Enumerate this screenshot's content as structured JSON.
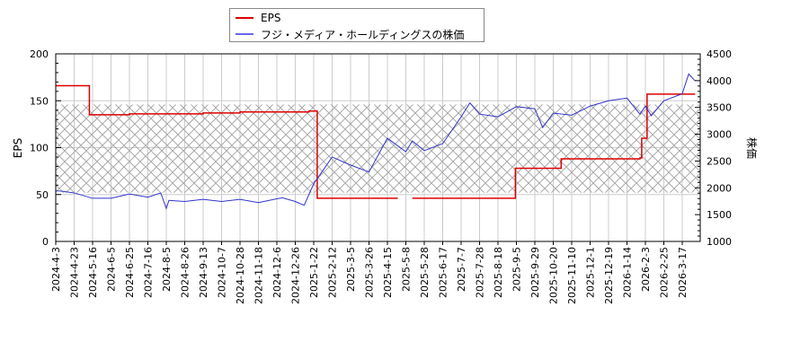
{
  "legend": {
    "items": [
      {
        "label": "EPS",
        "color": "#dd0000"
      },
      {
        "label": "フジ・メディア・ホールディングスの株価",
        "color": "#3333cc"
      }
    ]
  },
  "axes": {
    "left": {
      "title": "EPS",
      "ticks": [
        "0",
        "50",
        "100",
        "150",
        "200"
      ]
    },
    "right": {
      "title": "株価",
      "ticks": [
        "1000",
        "1500",
        "2000",
        "2500",
        "3000",
        "3500",
        "4000",
        "4500"
      ]
    },
    "x_ticks": [
      "2024-4-3",
      "2024-4-23",
      "2024-5-16",
      "2024-6-5",
      "2024-6-25",
      "2024-7-16",
      "2024-8-5",
      "2024-8-26",
      "2024-9-13",
      "2024-10-7",
      "2024-10-28",
      "2024-11-18",
      "2024-12-6",
      "2024-12-26",
      "2025-1-22",
      "2025-2-12",
      "2025-3-5",
      "2025-3-26",
      "2025-4-15",
      "2025-5-8",
      "2025-5-28",
      "2025-6-17",
      "2025-7-7",
      "2025-7-28",
      "2025-8-18",
      "2025-9-5",
      "2025-9-29",
      "2025-10-20",
      "2025-11-10",
      "2025-12-1",
      "2025-12-19",
      "2026-1-14",
      "2026-2-3",
      "2026-2-25",
      "2026-3-17"
    ]
  },
  "chart_data": {
    "type": "line",
    "title": "",
    "xlabel": "",
    "ylabel": "EPS",
    "ylabel_right": "株価",
    "ylim": [
      0,
      200
    ],
    "ylim_right": [
      1000,
      4500
    ],
    "grid": true,
    "legend_position": "top",
    "shaded_band": {
      "eps_range": [
        52,
        146
      ],
      "pattern": "crosshatch"
    },
    "categories": [
      "2024-4-3",
      "2024-4-23",
      "2024-5-16",
      "2024-6-5",
      "2024-6-25",
      "2024-7-16",
      "2024-8-5",
      "2024-8-26",
      "2024-9-13",
      "2024-10-7",
      "2024-10-28",
      "2024-11-18",
      "2024-12-6",
      "2024-12-26",
      "2025-1-22",
      "2025-2-12",
      "2025-3-5",
      "2025-3-26",
      "2025-4-15",
      "2025-5-8",
      "2025-5-28",
      "2025-6-17",
      "2025-7-7",
      "2025-7-28",
      "2025-8-18",
      "2025-9-5",
      "2025-9-29",
      "2025-10-20",
      "2025-11-10",
      "2025-12-1",
      "2025-12-19",
      "2026-1-14",
      "2026-2-3",
      "2026-2-25",
      "2026-3-17"
    ],
    "series": [
      {
        "name": "EPS",
        "axis": "left",
        "color": "#dd0000",
        "points": [
          [
            "2024-4-3",
            166
          ],
          [
            "2024-5-10",
            166
          ],
          [
            "2024-5-12",
            135
          ],
          [
            "2024-6-25",
            136
          ],
          [
            "2024-8-5",
            136
          ],
          [
            "2024-9-13",
            137
          ],
          [
            "2024-10-28",
            138
          ],
          [
            "2024-12-6",
            138
          ],
          [
            "2025-1-15",
            139
          ],
          [
            "2025-1-24",
            139
          ],
          [
            "2025-1-26",
            46
          ],
          [
            "2025-4-28",
            46
          ],
          [
            "2025-5-15",
            46
          ],
          [
            "2025-9-3",
            46
          ],
          [
            "2025-9-4",
            78
          ],
          [
            "2025-10-28",
            78
          ],
          [
            "2025-10-29",
            88
          ],
          [
            "2026-1-28",
            89
          ],
          [
            "2026-1-30",
            110
          ],
          [
            "2026-2-3",
            110
          ],
          [
            "2026-2-5",
            157
          ],
          [
            "2026-3-31",
            157
          ]
        ]
      },
      {
        "name": "フジ・メディア・ホールディングスの株価",
        "axis": "right",
        "color": "#3333cc",
        "points": [
          [
            "2024-4-3",
            1920
          ],
          [
            "2024-4-10",
            1960
          ],
          [
            "2024-4-23",
            1880
          ],
          [
            "2024-5-16",
            1830
          ],
          [
            "2024-6-5",
            1780
          ],
          [
            "2024-6-10",
            1850
          ],
          [
            "2024-6-25",
            1860
          ],
          [
            "2024-7-16",
            1850
          ],
          [
            "2024-7-30",
            1880
          ],
          [
            "2024-8-5",
            1640
          ],
          [
            "2024-8-8",
            1740
          ],
          [
            "2024-8-26",
            1770
          ],
          [
            "2024-9-13",
            1760
          ],
          [
            "2024-10-7",
            1770
          ],
          [
            "2024-10-28",
            1760
          ],
          [
            "2024-11-18",
            1750
          ],
          [
            "2024-12-6",
            1770
          ],
          [
            "2024-12-12",
            1840
          ],
          [
            "2024-12-26",
            1720
          ],
          [
            "2025-1-8",
            1700
          ],
          [
            "2025-1-22",
            2050
          ],
          [
            "2025-2-12",
            2600
          ],
          [
            "2025-3-5",
            2400
          ],
          [
            "2025-3-26",
            2320
          ],
          [
            "2025-4-15",
            2900
          ],
          [
            "2025-5-8",
            2700
          ],
          [
            "2025-5-15",
            2850
          ],
          [
            "2025-5-28",
            2720
          ],
          [
            "2025-6-17",
            2800
          ],
          [
            "2025-7-7",
            3350
          ],
          [
            "2025-7-17",
            3560
          ],
          [
            "2025-7-28",
            3400
          ],
          [
            "2025-8-18",
            3300
          ],
          [
            "2025-9-5",
            3540
          ],
          [
            "2025-9-29",
            3450
          ],
          [
            "2025-10-8",
            3150
          ],
          [
            "2025-10-20",
            3370
          ],
          [
            "2025-11-10",
            3380
          ],
          [
            "2025-12-1",
            3500
          ],
          [
            "2025-12-19",
            3650
          ],
          [
            "2026-1-14",
            3650
          ],
          [
            "2026-1-28",
            3400
          ],
          [
            "2026-2-3",
            3500
          ],
          [
            "2026-2-10",
            3370
          ],
          [
            "2026-2-25",
            3600
          ],
          [
            "2026-3-17",
            3780
          ],
          [
            "2026-3-24",
            4100
          ],
          [
            "2026-3-31",
            4020
          ]
        ]
      }
    ]
  }
}
